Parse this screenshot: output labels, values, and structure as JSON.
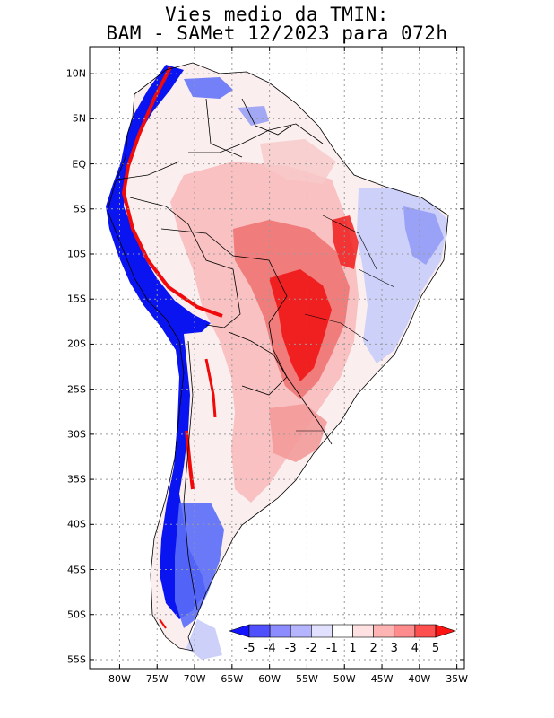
{
  "title": {
    "line1": "Vies medio da TMIN:",
    "line2": "BAM - SAMet 12/2023  para 072h"
  },
  "map": {
    "lat_labels": [
      "10N",
      "5N",
      "EQ",
      "5S",
      "10S",
      "15S",
      "20S",
      "25S",
      "30S",
      "35S",
      "40S",
      "45S",
      "50S",
      "55S"
    ],
    "lat_values": [
      10,
      5,
      0,
      -5,
      -10,
      -15,
      -20,
      -25,
      -30,
      -35,
      -40,
      -45,
      -50,
      -55
    ],
    "lon_labels": [
      "80W",
      "75W",
      "70W",
      "65W",
      "60W",
      "55W",
      "50W",
      "45W",
      "40W",
      "35W"
    ],
    "lon_values": [
      -80,
      -75,
      -70,
      -65,
      -60,
      -55,
      -50,
      -45,
      -40,
      -35
    ],
    "lat_range": [
      -56,
      13
    ],
    "lon_range": [
      -84,
      -34
    ],
    "grid": true,
    "colors": {
      "strong_cold": "#0a14f0",
      "cold": "#5a6cf8",
      "light_cold": "#c8ccf8",
      "neutral": "#ffffff",
      "light_warm": "#f8c8c8",
      "warm": "#f07878",
      "strong_warm": "#f00a0a"
    }
  },
  "colorbar": {
    "labels": [
      "-5",
      "-4",
      "-3",
      "-2",
      "-1",
      "1",
      "2",
      "3",
      "4",
      "5"
    ],
    "colors": [
      "#1414ff",
      "#5050ff",
      "#8c8cff",
      "#b4b4ff",
      "#e1e1ff",
      "#ffffff",
      "#ffe1e1",
      "#ffb4b4",
      "#ff8c8c",
      "#ff5050",
      "#ff1414"
    ]
  }
}
